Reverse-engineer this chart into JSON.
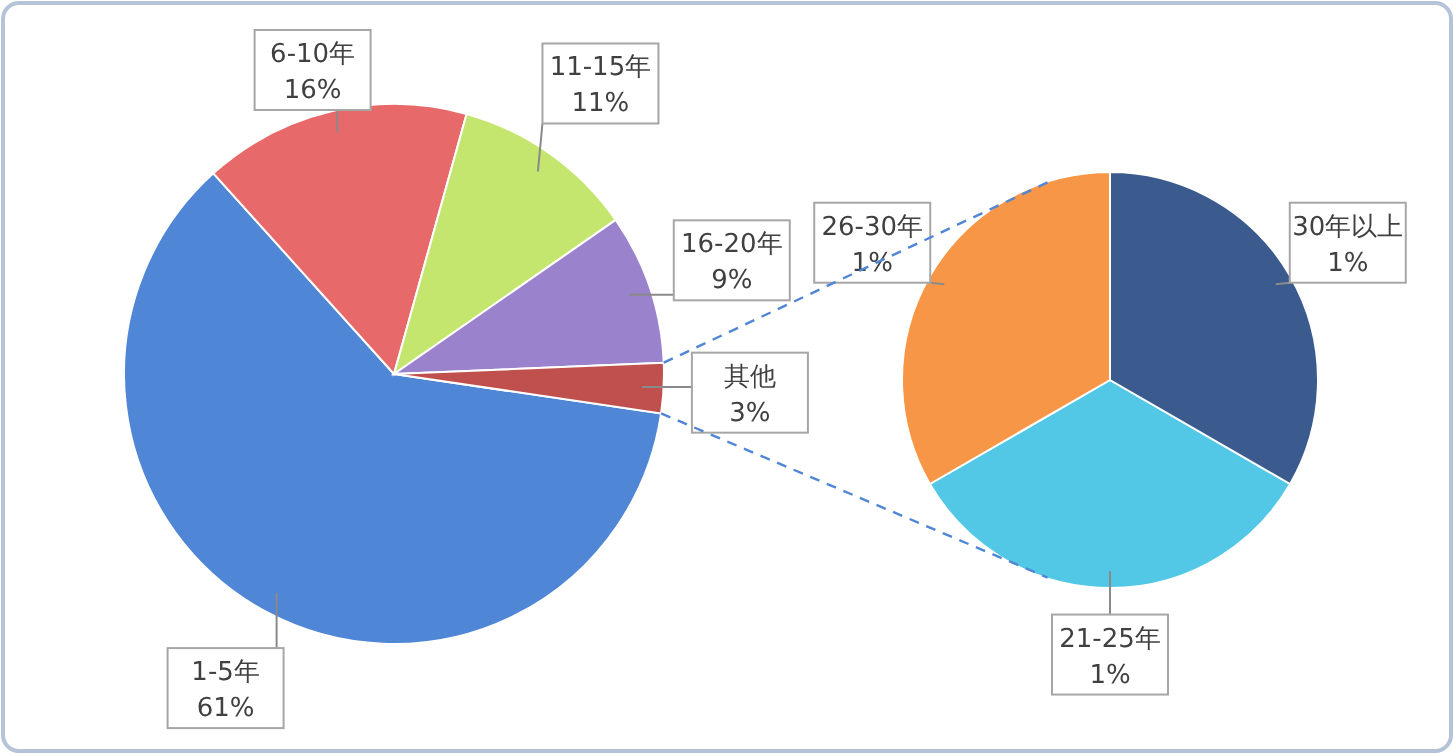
{
  "chart_data": [
    {
      "type": "pie",
      "categories": [
        "1-5年",
        "6-10年",
        "11-15年",
        "16-20年",
        "其他"
      ],
      "values": [
        61,
        16,
        11,
        9,
        3
      ],
      "value_labels": [
        "61%",
        "16%",
        "11%",
        "9%",
        "3%"
      ],
      "colors": [
        "#4f86d6",
        "#e8696a",
        "#c5e66e",
        "#9b82cc",
        "#c0504d"
      ]
    },
    {
      "type": "pie",
      "categories": [
        "21-25年",
        "26-30年",
        "30年以上"
      ],
      "values": [
        1,
        1,
        1
      ],
      "value_labels": [
        "1%",
        "1%",
        "1%"
      ],
      "colors": [
        "#52c8e6",
        "#f79646",
        "#3b5b8f"
      ]
    }
  ]
}
